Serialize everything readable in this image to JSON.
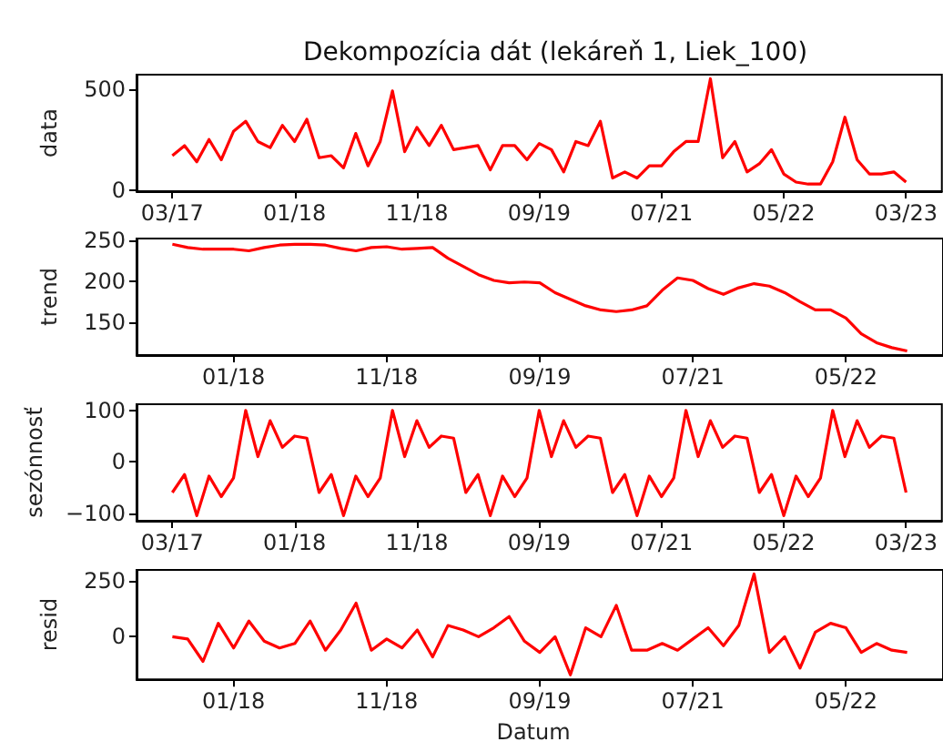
{
  "chart_data": [
    {
      "type": "line",
      "title": "Dekompozícia dát (lekáreň 1, Liek_100)",
      "ylabel": "data",
      "color": "#ff0000",
      "grid": false,
      "categories": [
        "03/17",
        null,
        null,
        null,
        null,
        null,
        null,
        null,
        null,
        null,
        "01/18",
        null,
        null,
        null,
        null,
        null,
        null,
        null,
        null,
        null,
        "11/18",
        null,
        null,
        null,
        null,
        null,
        null,
        null,
        null,
        null,
        "09/19",
        null,
        null,
        null,
        null,
        null,
        null,
        null,
        null,
        null,
        "07/21",
        null,
        null,
        null,
        null,
        null,
        null,
        null,
        null,
        null,
        "05/22",
        null,
        null,
        null,
        null,
        null,
        null,
        null,
        null,
        null,
        "03/23"
      ],
      "values": [
        170,
        220,
        140,
        250,
        150,
        290,
        340,
        240,
        210,
        320,
        240,
        350,
        160,
        170,
        110,
        280,
        120,
        240,
        490,
        190,
        310,
        220,
        320,
        200,
        210,
        220,
        100,
        220,
        220,
        150,
        230,
        200,
        90,
        240,
        220,
        340,
        60,
        90,
        60,
        120,
        120,
        190,
        240,
        240,
        550,
        160,
        240,
        90,
        130,
        200,
        80,
        40,
        30,
        30,
        140,
        360,
        150,
        80,
        80,
        90,
        40
      ],
      "ylim": [
        -5,
        570
      ],
      "yticks": [
        0,
        500
      ]
    },
    {
      "type": "line",
      "ylabel": "trend",
      "color": "#ff0000",
      "grid": false,
      "categories": [
        null,
        null,
        null,
        null,
        "01/18",
        null,
        null,
        null,
        null,
        null,
        null,
        null,
        null,
        null,
        "11/18",
        null,
        null,
        null,
        null,
        null,
        null,
        null,
        null,
        null,
        "09/19",
        null,
        null,
        null,
        null,
        null,
        null,
        null,
        null,
        null,
        "07/21",
        null,
        null,
        null,
        null,
        null,
        null,
        null,
        null,
        null,
        "05/22",
        null,
        null,
        null,
        null
      ],
      "values": [
        245,
        241,
        239,
        239,
        239,
        237,
        241,
        244,
        245,
        245,
        244,
        240,
        237,
        241,
        242,
        239,
        240,
        241,
        228,
        218,
        208,
        201,
        198,
        199,
        198,
        186,
        178,
        170,
        165,
        163,
        165,
        170,
        189,
        204,
        201,
        191,
        184,
        192,
        197,
        194,
        186,
        175,
        165,
        165,
        155,
        136,
        125,
        119,
        115
      ],
      "ylim": [
        110,
        252
      ],
      "yticks": [
        150,
        200,
        250
      ]
    },
    {
      "type": "line",
      "ylabel": "sezónnosť",
      "color": "#ff0000",
      "grid": false,
      "categories": [
        "03/17",
        null,
        null,
        null,
        null,
        null,
        null,
        null,
        null,
        null,
        "01/18",
        null,
        null,
        null,
        null,
        null,
        null,
        null,
        null,
        null,
        "11/18",
        null,
        null,
        null,
        null,
        null,
        null,
        null,
        null,
        null,
        "09/19",
        null,
        null,
        null,
        null,
        null,
        null,
        null,
        null,
        null,
        "07/21",
        null,
        null,
        null,
        null,
        null,
        null,
        null,
        null,
        null,
        "05/22",
        null,
        null,
        null,
        null,
        null,
        null,
        null,
        null,
        null,
        "03/23"
      ],
      "values": [
        -60,
        -25,
        -105,
        -28,
        -68,
        -32,
        100,
        10,
        80,
        28,
        50,
        46,
        -60,
        -25,
        -105,
        -28,
        -68,
        -32,
        100,
        10,
        80,
        28,
        50,
        46,
        -60,
        -25,
        -105,
        -28,
        -68,
        -32,
        100,
        10,
        80,
        28,
        50,
        46,
        -60,
        -25,
        -105,
        -28,
        -68,
        -32,
        100,
        10,
        80,
        28,
        50,
        46,
        -60,
        -25,
        -105,
        -28,
        -68,
        -32,
        100,
        10,
        80,
        28,
        50,
        46,
        -60
      ],
      "ylim": [
        -115,
        112
      ],
      "yticks": [
        -100,
        0,
        100
      ]
    },
    {
      "type": "line",
      "ylabel": "resid",
      "xlabel": "Datum",
      "color": "#ff0000",
      "grid": false,
      "categories": [
        null,
        null,
        null,
        null,
        "01/18",
        null,
        null,
        null,
        null,
        null,
        null,
        null,
        null,
        null,
        "11/18",
        null,
        null,
        null,
        null,
        null,
        null,
        null,
        null,
        null,
        "09/19",
        null,
        null,
        null,
        null,
        null,
        null,
        null,
        null,
        null,
        "07/21",
        null,
        null,
        null,
        null,
        null,
        null,
        null,
        null,
        null,
        "05/22",
        null,
        null,
        null,
        null
      ],
      "values": [
        0,
        -10,
        -110,
        60,
        -50,
        70,
        -20,
        -50,
        -30,
        70,
        -60,
        30,
        150,
        -60,
        -10,
        -50,
        30,
        -90,
        50,
        30,
        0,
        40,
        90,
        -20,
        -70,
        0,
        -170,
        40,
        0,
        140,
        -60,
        -60,
        -30,
        -60,
        -10,
        40,
        -40,
        50,
        280,
        -70,
        0,
        -140,
        20,
        60,
        40,
        -70,
        -30,
        -60,
        -70
      ],
      "ylim": [
        -190,
        298
      ],
      "yticks": [
        0,
        250
      ]
    }
  ]
}
